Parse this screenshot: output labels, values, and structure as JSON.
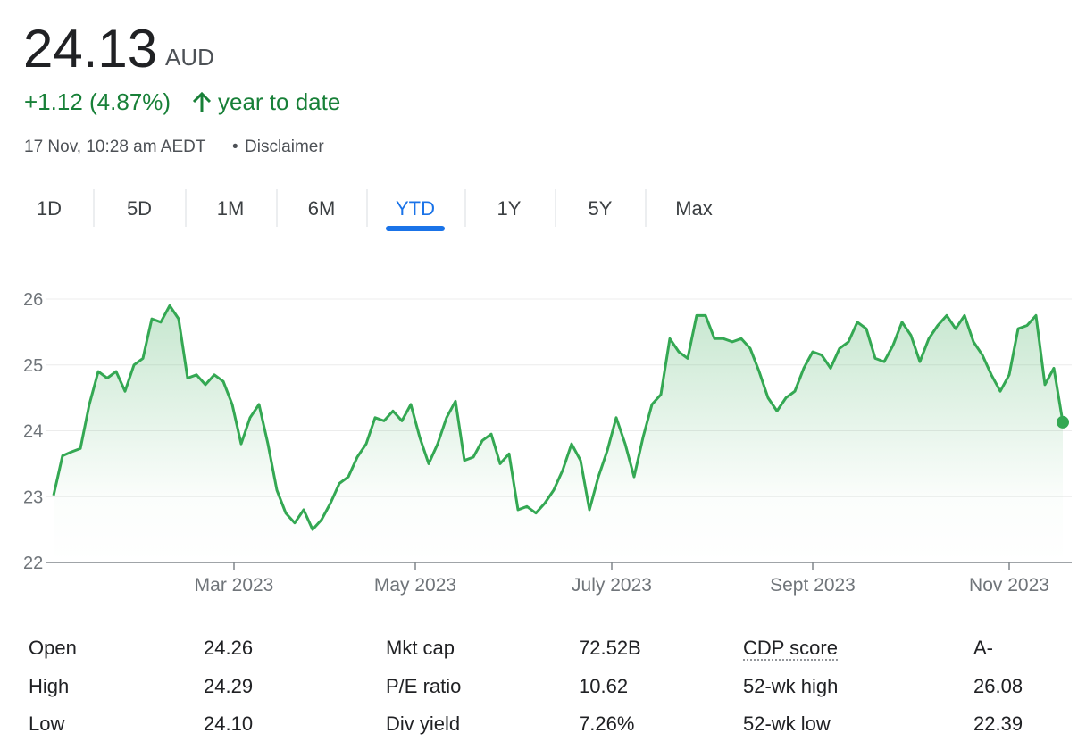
{
  "header": {
    "price": "24.13",
    "currency": "AUD",
    "change": "+1.12 (4.87%)",
    "period": "year to date",
    "timestamp": "17 Nov, 10:28 am AEDT",
    "disclaimer": "Disclaimer"
  },
  "tabs": [
    "1D",
    "5D",
    "1M",
    "6M",
    "YTD",
    "1Y",
    "5Y",
    "Max"
  ],
  "selected_tab": 4,
  "chart": {
    "type": "line",
    "color": "#34a853",
    "values": [
      23.02,
      23.62,
      23.68,
      23.73,
      24.4,
      24.9,
      24.8,
      24.9,
      24.6,
      25.0,
      25.1,
      25.7,
      25.65,
      25.9,
      25.7,
      24.8,
      24.85,
      24.7,
      24.85,
      24.75,
      24.4,
      23.8,
      24.2,
      24.4,
      23.8,
      23.1,
      22.75,
      22.6,
      22.8,
      22.5,
      22.65,
      22.9,
      23.2,
      23.3,
      23.6,
      23.8,
      24.2,
      24.15,
      24.3,
      24.15,
      24.4,
      23.9,
      23.5,
      23.8,
      24.2,
      24.45,
      23.55,
      23.6,
      23.85,
      23.95,
      23.5,
      23.65,
      22.8,
      22.85,
      22.75,
      22.9,
      23.1,
      23.4,
      23.8,
      23.55,
      22.8,
      23.3,
      23.7,
      24.2,
      23.8,
      23.3,
      23.9,
      24.4,
      24.55,
      25.4,
      25.2,
      25.1,
      25.75,
      25.75,
      25.4,
      25.4,
      25.35,
      25.4,
      25.25,
      24.9,
      24.5,
      24.3,
      24.5,
      24.6,
      24.95,
      25.2,
      25.15,
      24.95,
      25.25,
      25.35,
      25.65,
      25.55,
      25.1,
      25.05,
      25.3,
      25.65,
      25.45,
      25.05,
      25.4,
      25.6,
      25.75,
      25.55,
      25.75,
      25.35,
      25.15,
      24.85,
      24.6,
      24.85,
      25.55,
      25.6,
      25.75,
      24.7,
      24.95,
      24.13
    ],
    "xlim": [
      0,
      113
    ],
    "xticks": [
      {
        "value": 20.2,
        "label": "Mar 2023"
      },
      {
        "value": 40.5,
        "label": "May 2023"
      },
      {
        "value": 62.5,
        "label": "July 2023"
      },
      {
        "value": 85,
        "label": "Sept 2023"
      },
      {
        "value": 107,
        "label": "Nov 2023"
      }
    ],
    "ylim": [
      22,
      26
    ],
    "yticks": [
      22,
      23,
      24,
      25,
      26
    ],
    "grid": true
  },
  "stats": {
    "rows": [
      [
        "Open",
        "24.26",
        "Mkt cap",
        "72.52B",
        "CDP score",
        "A-"
      ],
      [
        "High",
        "24.29",
        "P/E ratio",
        "10.62",
        "52-wk high",
        "26.08"
      ],
      [
        "Low",
        "24.10",
        "Div yield",
        "7.26%",
        "52-wk low",
        "22.39"
      ]
    ]
  }
}
